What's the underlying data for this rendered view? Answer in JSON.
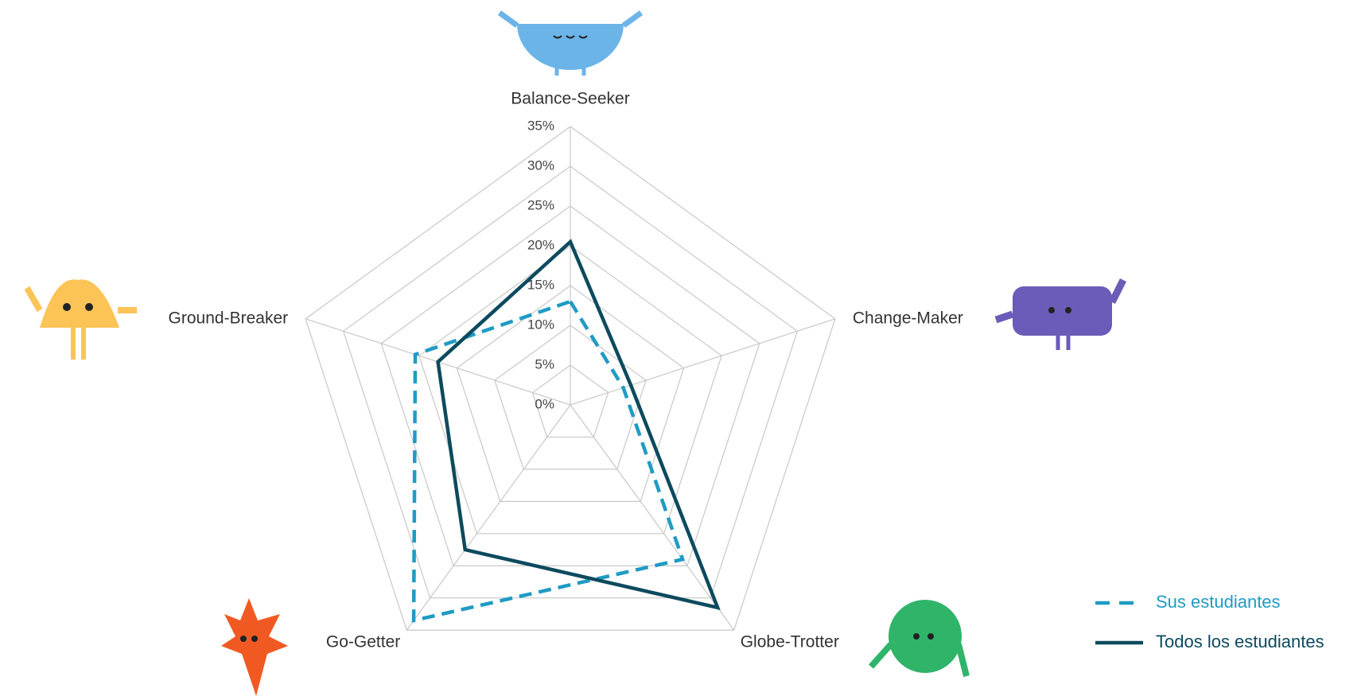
{
  "chart_data": {
    "type": "radar",
    "categories": [
      "Balance-Seeker",
      "Change-Maker",
      "Globe-Trotter",
      "Go-Getter",
      "Ground-Breaker"
    ],
    "series": [
      {
        "name": "Sus estudiantes",
        "color": "#1f9bc4",
        "dashed": true,
        "values": [
          13,
          7,
          24,
          33.5,
          20.5
        ]
      },
      {
        "name": "Todos los estudiantes",
        "color": "#0d4a5e",
        "dashed": false,
        "values": [
          20.5,
          8,
          31.5,
          22.5,
          17.5
        ]
      }
    ],
    "ylim": [
      0,
      35
    ],
    "yticks": [
      {
        "value": 0,
        "label": "0%"
      },
      {
        "value": 5,
        "label": "5%"
      },
      {
        "value": 10,
        "label": "10%"
      },
      {
        "value": 15,
        "label": "15%"
      },
      {
        "value": 20,
        "label": "20%"
      },
      {
        "value": 25,
        "label": "25%"
      },
      {
        "value": 30,
        "label": "30%"
      },
      {
        "value": 35,
        "label": "35%"
      }
    ],
    "grid": true,
    "legend": "lower right"
  }
}
